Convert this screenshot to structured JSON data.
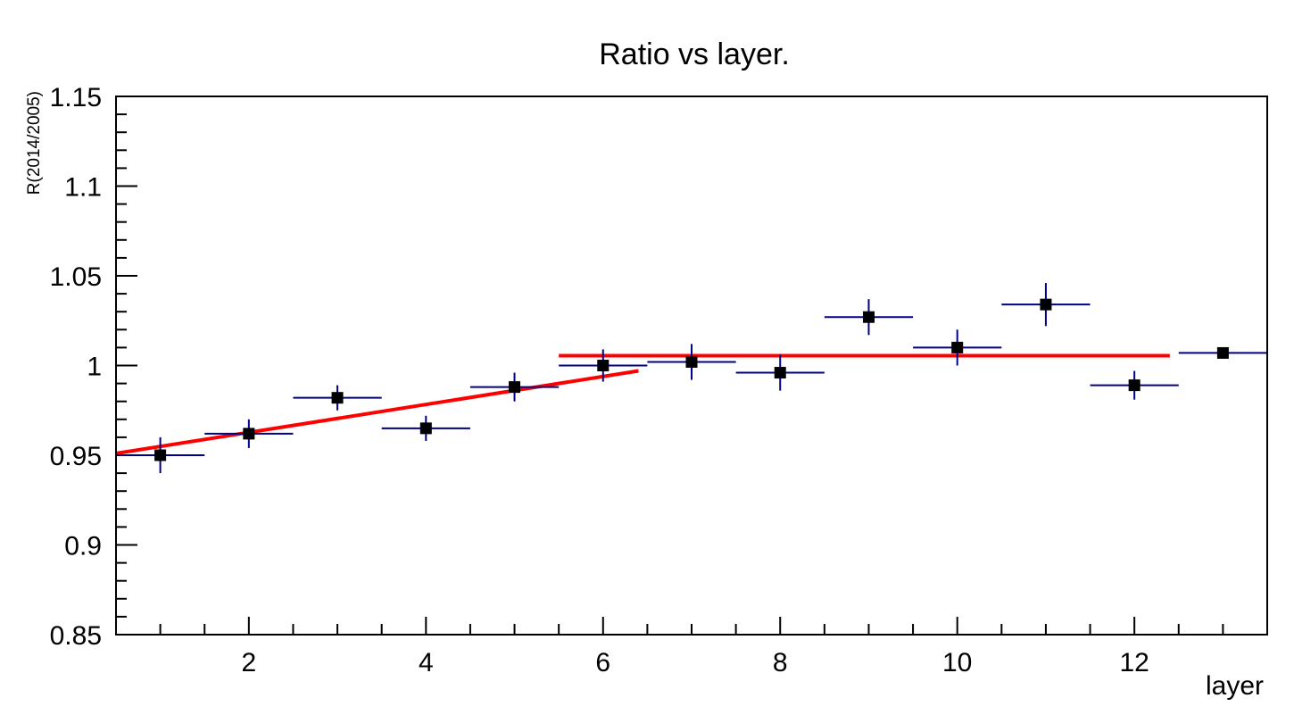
{
  "chart_data": {
    "type": "scatter",
    "title": "Ratio vs layer.",
    "xlabel": "layer",
    "ylabel": "R(2014/2005)",
    "xlim": [
      0.5,
      13.5
    ],
    "ylim": [
      0.85,
      1.15
    ],
    "x_ticks": [
      2,
      4,
      6,
      8,
      10,
      12
    ],
    "y_ticks": [
      0.85,
      0.9,
      0.95,
      1,
      1.05,
      1.1,
      1.15
    ],
    "x_tick_labels": [
      "2",
      "4",
      "6",
      "8",
      "10",
      "12"
    ],
    "y_tick_labels": [
      "0.85",
      "0.9",
      "0.95",
      "1",
      "1.05",
      "1.1",
      "1.15"
    ],
    "grid": false,
    "series": [
      {
        "x": [
          1,
          2,
          3,
          4,
          5,
          6,
          7,
          8,
          9,
          10,
          11,
          12,
          13
        ],
        "y": [
          0.95,
          0.962,
          0.982,
          0.965,
          0.988,
          1.0,
          1.002,
          0.996,
          1.027,
          1.01,
          1.034,
          0.989,
          1.007
        ],
        "x_err": [
          0.5,
          0.5,
          0.5,
          0.5,
          0.5,
          0.5,
          0.5,
          0.5,
          0.5,
          0.5,
          0.5,
          0.5,
          0.5
        ],
        "y_err": [
          0.01,
          0.008,
          0.007,
          0.007,
          0.008,
          0.009,
          0.01,
          0.01,
          0.01,
          0.01,
          0.012,
          0.008,
          0.002
        ],
        "color": "#000000",
        "error_color": "#00008b"
      }
    ],
    "fits": [
      {
        "x": [
          0.5,
          6.4
        ],
        "y": [
          0.951,
          0.997
        ],
        "color": "#ff0000"
      },
      {
        "x": [
          5.5,
          12.4
        ],
        "y": [
          1.0055,
          1.0055
        ],
        "color": "#ff0000"
      }
    ]
  }
}
